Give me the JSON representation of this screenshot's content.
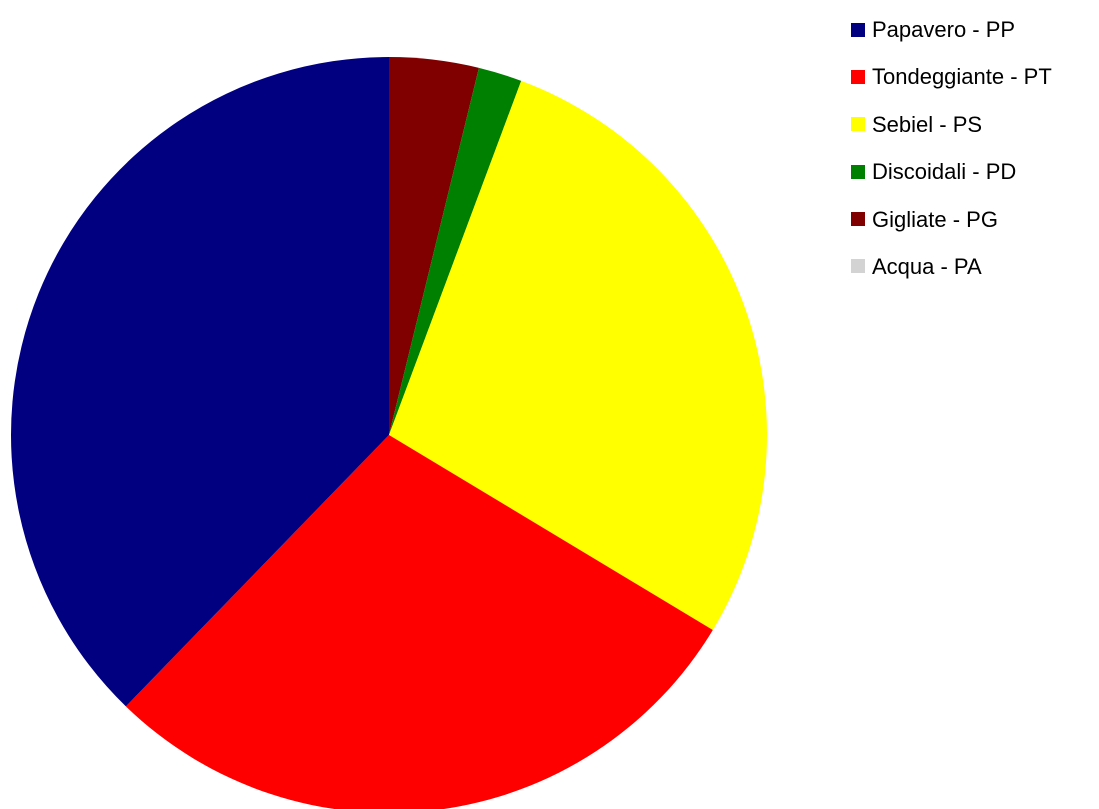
{
  "chart_data": {
    "type": "pie",
    "title": "",
    "legend_position": "top-right",
    "start_angle_deg": 0,
    "direction": "clockwise",
    "order": [
      "Gigliate - PG",
      "Discoidali - PD",
      "Sebiel - PS",
      "Tondeggiante - PT",
      "Papavero - PP",
      "Acqua - PA"
    ],
    "slices": [
      {
        "label": "Papavero - PP",
        "value": 38.5,
        "color": "#000080"
      },
      {
        "label": "Tondeggiante - PT",
        "value": 29.2,
        "color": "#ff0000"
      },
      {
        "label": "Sebiel - PS",
        "value": 28.5,
        "color": "#ffff00"
      },
      {
        "label": "Discoidali - PD",
        "value": 1.9,
        "color": "#008000"
      },
      {
        "label": "Gigliate - PG",
        "value": 3.9,
        "color": "#800000"
      },
      {
        "label": "Acqua - PA",
        "value": 0,
        "color": "#d3d3d3"
      }
    ]
  }
}
